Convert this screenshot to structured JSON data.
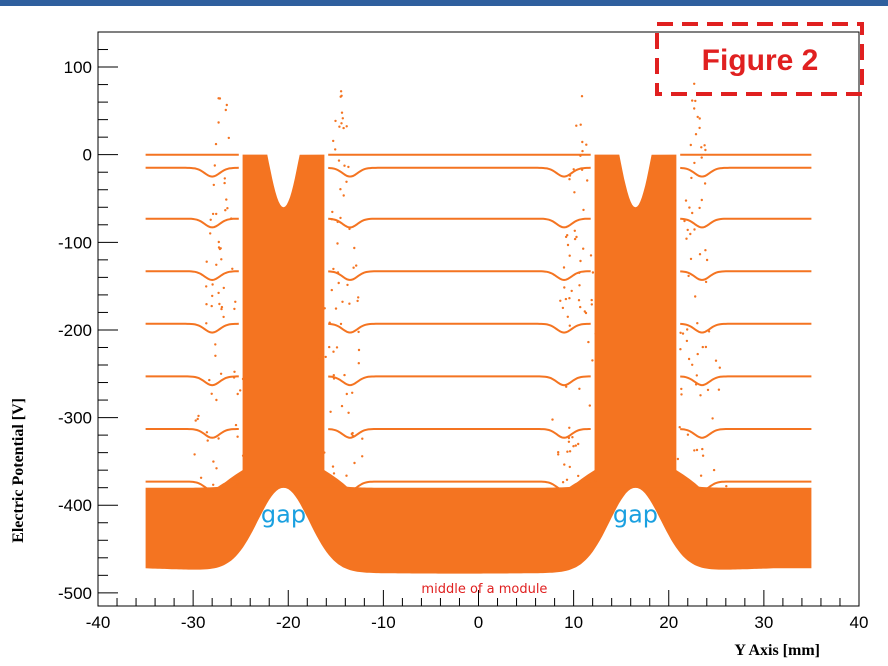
{
  "chart_data": {
    "type": "scatter",
    "xlabel": "Y Axis [mm]",
    "ylabel": "Electric Potential [V]",
    "xlim": [
      -40,
      40
    ],
    "ylim": [
      -515,
      140
    ],
    "x_ticks": [
      -40,
      -30,
      -20,
      -10,
      0,
      10,
      20,
      30,
      40
    ],
    "y_ticks": [
      100,
      0,
      -100,
      -200,
      -300,
      -400,
      -500
    ],
    "data_x_range": [
      -35,
      35
    ],
    "gaps": [
      {
        "center": -20.5,
        "label": "gap"
      },
      {
        "center": 16.5,
        "label": "gap"
      }
    ],
    "lines": [
      {
        "plateau": 0,
        "dip": 0
      },
      {
        "plateau": -15,
        "dip": -10
      },
      {
        "plateau": -73,
        "dip": -10
      },
      {
        "plateau": -133,
        "dip": -10
      },
      {
        "plateau": -193,
        "dip": -10
      },
      {
        "plateau": -253,
        "dip": -10
      },
      {
        "plateau": -313,
        "dip": -10
      },
      {
        "plateau": -373,
        "dip": -10
      }
    ],
    "band": {
      "top": -380,
      "bottom": -472,
      "middle_bottom": -478,
      "gap_top": -355
    },
    "spikes": [
      {
        "x": -27,
        "y_max": 85
      },
      {
        "x": -14.5,
        "y_max": 85
      },
      {
        "x": 10.5,
        "y_max": 85
      },
      {
        "x": 23,
        "y_max": 85
      }
    ],
    "annotations": [
      {
        "text": "middle of a module",
        "x": -6,
        "y": -500
      }
    ],
    "color": "#f47421",
    "annotation_colors": {
      "gap": "#1aa0e0",
      "middle": "#e02020",
      "figure": "#e02020"
    },
    "grid": false
  },
  "figure_label": "Figure 2"
}
